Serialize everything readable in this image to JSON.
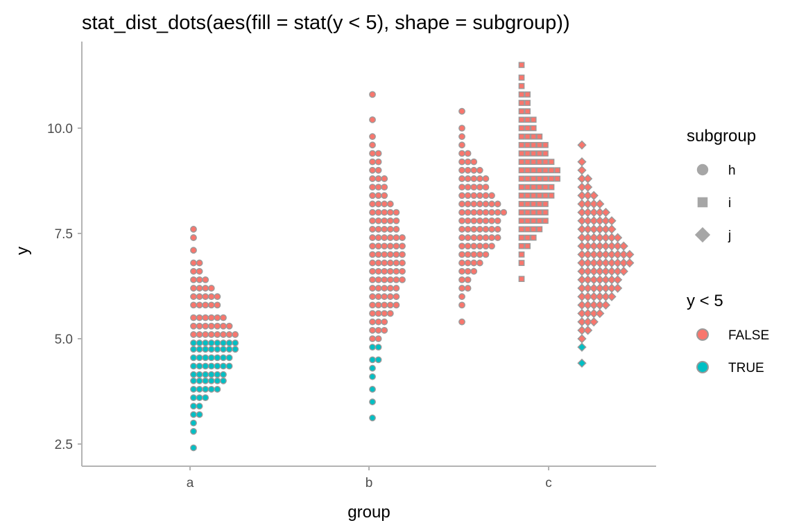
{
  "chart_data": {
    "type": "scatter",
    "subtype": "stacked dotplot (stat_dist_dots)",
    "title": "stat_dist_dots(aes(fill = stat(y < 5), shape = subgroup))",
    "xlabel": "group",
    "ylabel": "y",
    "categories": [
      "a",
      "b",
      "c"
    ],
    "yticks": [
      2.5,
      5.0,
      7.5,
      10.0
    ],
    "ytick_labels": [
      "2.5",
      "5.0",
      "7.5",
      "10.0"
    ],
    "ylim": [
      2.0,
      12.0
    ],
    "grid": false,
    "legend_position": "right",
    "colors": {
      "FALSE": "#f8766d",
      "TRUE": "#00bfc4",
      "subgroup_key": "#a6a6a6",
      "point_outline": "#9a9a9a",
      "axis": "#b3b3b3"
    },
    "legends": [
      {
        "title": "subgroup",
        "items": [
          {
            "label": "h",
            "shape": "circle"
          },
          {
            "label": "i",
            "shape": "square"
          },
          {
            "label": "j",
            "shape": "diamond"
          }
        ]
      },
      {
        "title": "y < 5",
        "items": [
          {
            "label": "FALSE",
            "fill": "#f8766d"
          },
          {
            "label": "TRUE",
            "fill": "#00bfc4"
          }
        ]
      }
    ],
    "series": [
      {
        "group": "a",
        "subgroup": "h",
        "shape": "circle",
        "bins": [
          [
            2.41,
            1
          ],
          [
            2.8,
            1
          ],
          [
            3.0,
            1
          ],
          [
            3.2,
            2
          ],
          [
            3.4,
            2
          ],
          [
            3.6,
            3
          ],
          [
            3.8,
            5
          ],
          [
            4.0,
            6
          ],
          [
            4.15,
            6
          ],
          [
            4.35,
            7
          ],
          [
            4.55,
            7
          ],
          [
            4.75,
            8
          ],
          [
            4.9,
            8
          ],
          [
            5.1,
            8
          ],
          [
            5.3,
            7
          ],
          [
            5.5,
            6
          ],
          [
            5.8,
            5
          ],
          [
            6.0,
            5
          ],
          [
            6.2,
            4
          ],
          [
            6.4,
            3
          ],
          [
            6.6,
            2
          ],
          [
            6.8,
            2
          ],
          [
            7.1,
            1
          ],
          [
            7.4,
            1
          ],
          [
            7.6,
            1
          ]
        ]
      },
      {
        "group": "b",
        "subgroup": "h",
        "shape": "circle",
        "bins": [
          [
            3.12,
            1
          ],
          [
            3.5,
            1
          ],
          [
            3.8,
            1
          ],
          [
            4.1,
            1
          ],
          [
            4.3,
            1
          ],
          [
            4.5,
            2
          ],
          [
            4.8,
            2
          ],
          [
            5.0,
            2
          ],
          [
            5.2,
            3
          ],
          [
            5.4,
            3
          ],
          [
            5.6,
            4
          ],
          [
            5.8,
            5
          ],
          [
            6.0,
            5
          ],
          [
            6.2,
            5
          ],
          [
            6.4,
            6
          ],
          [
            6.6,
            6
          ],
          [
            6.8,
            6
          ],
          [
            7.0,
            6
          ],
          [
            7.2,
            6
          ],
          [
            7.4,
            6
          ],
          [
            7.6,
            5
          ],
          [
            7.8,
            5
          ],
          [
            8.0,
            5
          ],
          [
            8.2,
            4
          ],
          [
            8.4,
            3
          ],
          [
            8.6,
            3
          ],
          [
            8.8,
            3
          ],
          [
            9.0,
            2
          ],
          [
            9.2,
            2
          ],
          [
            9.4,
            2
          ],
          [
            9.6,
            1
          ],
          [
            9.8,
            1
          ],
          [
            10.2,
            1
          ],
          [
            10.8,
            1
          ]
        ]
      },
      {
        "group": "c",
        "subgroup": "h",
        "shape": "circle",
        "bins": [
          [
            5.4,
            1
          ],
          [
            5.8,
            1
          ],
          [
            6.0,
            1
          ],
          [
            6.2,
            2
          ],
          [
            6.4,
            2
          ],
          [
            6.6,
            3
          ],
          [
            6.8,
            4
          ],
          [
            7.0,
            5
          ],
          [
            7.2,
            6
          ],
          [
            7.4,
            7
          ],
          [
            7.6,
            7
          ],
          [
            7.8,
            7
          ],
          [
            8.0,
            8
          ],
          [
            8.2,
            7
          ],
          [
            8.4,
            6
          ],
          [
            8.6,
            5
          ],
          [
            8.8,
            5
          ],
          [
            9.0,
            4
          ],
          [
            9.2,
            3
          ],
          [
            9.4,
            2
          ],
          [
            9.6,
            1
          ],
          [
            9.8,
            1
          ],
          [
            10.0,
            1
          ],
          [
            10.4,
            1
          ]
        ]
      },
      {
        "group": "c",
        "subgroup": "i",
        "shape": "square",
        "bins": [
          [
            6.42,
            1
          ],
          [
            6.8,
            1
          ],
          [
            7.0,
            1
          ],
          [
            7.2,
            2
          ],
          [
            7.4,
            3
          ],
          [
            7.6,
            4
          ],
          [
            7.8,
            5
          ],
          [
            8.0,
            5
          ],
          [
            8.2,
            5
          ],
          [
            8.4,
            6
          ],
          [
            8.6,
            6
          ],
          [
            8.8,
            7
          ],
          [
            9.0,
            7
          ],
          [
            9.2,
            6
          ],
          [
            9.4,
            5
          ],
          [
            9.6,
            5
          ],
          [
            9.8,
            4
          ],
          [
            10.0,
            3
          ],
          [
            10.2,
            3
          ],
          [
            10.4,
            2
          ],
          [
            10.6,
            2
          ],
          [
            10.8,
            2
          ],
          [
            11.0,
            1
          ],
          [
            11.2,
            1
          ],
          [
            11.5,
            1
          ]
        ]
      },
      {
        "group": "c",
        "subgroup": "j",
        "shape": "diamond",
        "bins": [
          [
            4.42,
            1
          ],
          [
            4.8,
            1
          ],
          [
            5.0,
            1
          ],
          [
            5.2,
            2
          ],
          [
            5.4,
            3
          ],
          [
            5.6,
            4
          ],
          [
            5.8,
            5
          ],
          [
            6.0,
            6
          ],
          [
            6.2,
            7
          ],
          [
            6.4,
            7
          ],
          [
            6.6,
            8
          ],
          [
            6.8,
            9
          ],
          [
            7.0,
            9
          ],
          [
            7.2,
            8
          ],
          [
            7.4,
            7
          ],
          [
            7.6,
            6
          ],
          [
            7.8,
            6
          ],
          [
            8.0,
            5
          ],
          [
            8.2,
            4
          ],
          [
            8.4,
            3
          ],
          [
            8.6,
            2
          ],
          [
            8.8,
            2
          ],
          [
            9.0,
            1
          ],
          [
            9.2,
            1
          ],
          [
            9.6,
            1
          ]
        ]
      }
    ]
  }
}
